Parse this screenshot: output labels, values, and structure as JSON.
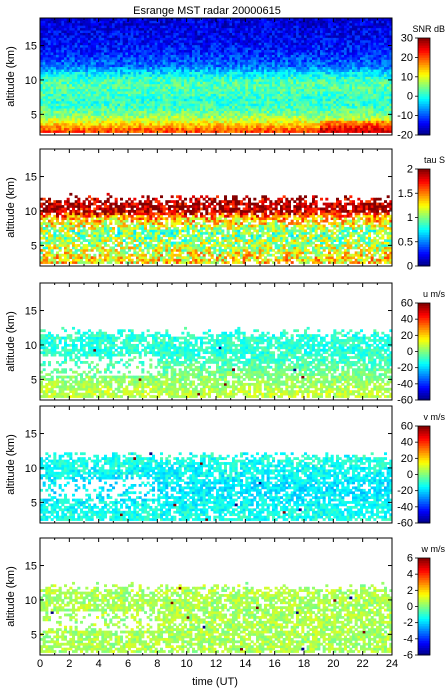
{
  "chart_data": {
    "type": "heatmap",
    "title": "Esrange MST radar 20000615",
    "xlabel": "time (UT)",
    "xlim": [
      0,
      24
    ],
    "xticks": [
      0,
      2,
      4,
      6,
      8,
      10,
      12,
      14,
      16,
      18,
      20,
      22,
      24
    ],
    "panels": [
      {
        "id": "snr",
        "ylabel": "altitude (km)",
        "ylim": [
          2,
          19
        ],
        "yticks": [
          5,
          10,
          15
        ],
        "colorbar_label": "SNR dB",
        "clim": [
          -20,
          30
        ],
        "colorbar_ticks": [
          -20,
          -10,
          0,
          10,
          20,
          30
        ],
        "colormap": "jet",
        "profile_altitude_km": [
          2.5,
          3.0,
          3.5,
          4.0,
          5.0,
          6.0,
          7.0,
          8.0,
          9.0,
          10.0,
          11.0,
          12.0,
          14.0,
          16.0,
          18.0
        ],
        "profile_value": [
          20,
          18,
          14,
          10,
          5,
          2,
          1,
          2,
          3,
          2,
          -2,
          -8,
          -12,
          -14,
          -15
        ]
      },
      {
        "id": "tau",
        "ylabel": "altitude (km)",
        "ylim": [
          2,
          19
        ],
        "yticks": [
          5,
          10,
          15
        ],
        "colorbar_label": "tau S",
        "clim": [
          0,
          2
        ],
        "colorbar_ticks": [
          0,
          0.5,
          1,
          1.5,
          2
        ],
        "colormap": "jet",
        "data_altitude_range_km": [
          2.5,
          12.5
        ],
        "profile_altitude_km": [
          3,
          5,
          7,
          9,
          10,
          11
        ],
        "profile_value": [
          1.3,
          1.1,
          1.0,
          1.4,
          1.9,
          1.95
        ]
      },
      {
        "id": "u",
        "ylabel": "altitude (km)",
        "ylim": [
          2,
          19
        ],
        "yticks": [
          5,
          10,
          15
        ],
        "colorbar_label": "u m/s",
        "clim": [
          -60,
          60
        ],
        "colorbar_ticks": [
          -60,
          -40,
          -20,
          0,
          20,
          40,
          60
        ],
        "colormap": "jet",
        "data_altitude_range_km": [
          2.5,
          12.5
        ],
        "profile_altitude_km": [
          3,
          5,
          7,
          9,
          11
        ],
        "profile_value": [
          8,
          2,
          -5,
          -10,
          -10
        ]
      },
      {
        "id": "v",
        "ylabel": "altitude (km)",
        "ylim": [
          2,
          19
        ],
        "yticks": [
          5,
          10,
          15
        ],
        "colorbar_label": "v m/s",
        "clim": [
          -60,
          60
        ],
        "colorbar_ticks": [
          -60,
          -40,
          -20,
          0,
          20,
          40,
          60
        ],
        "colormap": "jet",
        "data_altitude_range_km": [
          2.5,
          12.5
        ],
        "profile_altitude_km": [
          3,
          5,
          7,
          9,
          11
        ],
        "profile_value": [
          -12,
          -15,
          -18,
          -15,
          -12
        ]
      },
      {
        "id": "w",
        "ylabel": "altitude (km)",
        "ylim": [
          2,
          19
        ],
        "yticks": [
          5,
          10,
          15
        ],
        "colorbar_label": "w m/s",
        "clim": [
          -6,
          6
        ],
        "colorbar_ticks": [
          -6,
          -4,
          -2,
          0,
          2,
          4,
          6
        ],
        "colormap": "jet",
        "data_altitude_range_km": [
          2.5,
          12.5
        ],
        "profile_altitude_km": [
          3,
          7,
          11
        ],
        "profile_value": [
          0.5,
          0.5,
          0.5
        ]
      }
    ]
  }
}
